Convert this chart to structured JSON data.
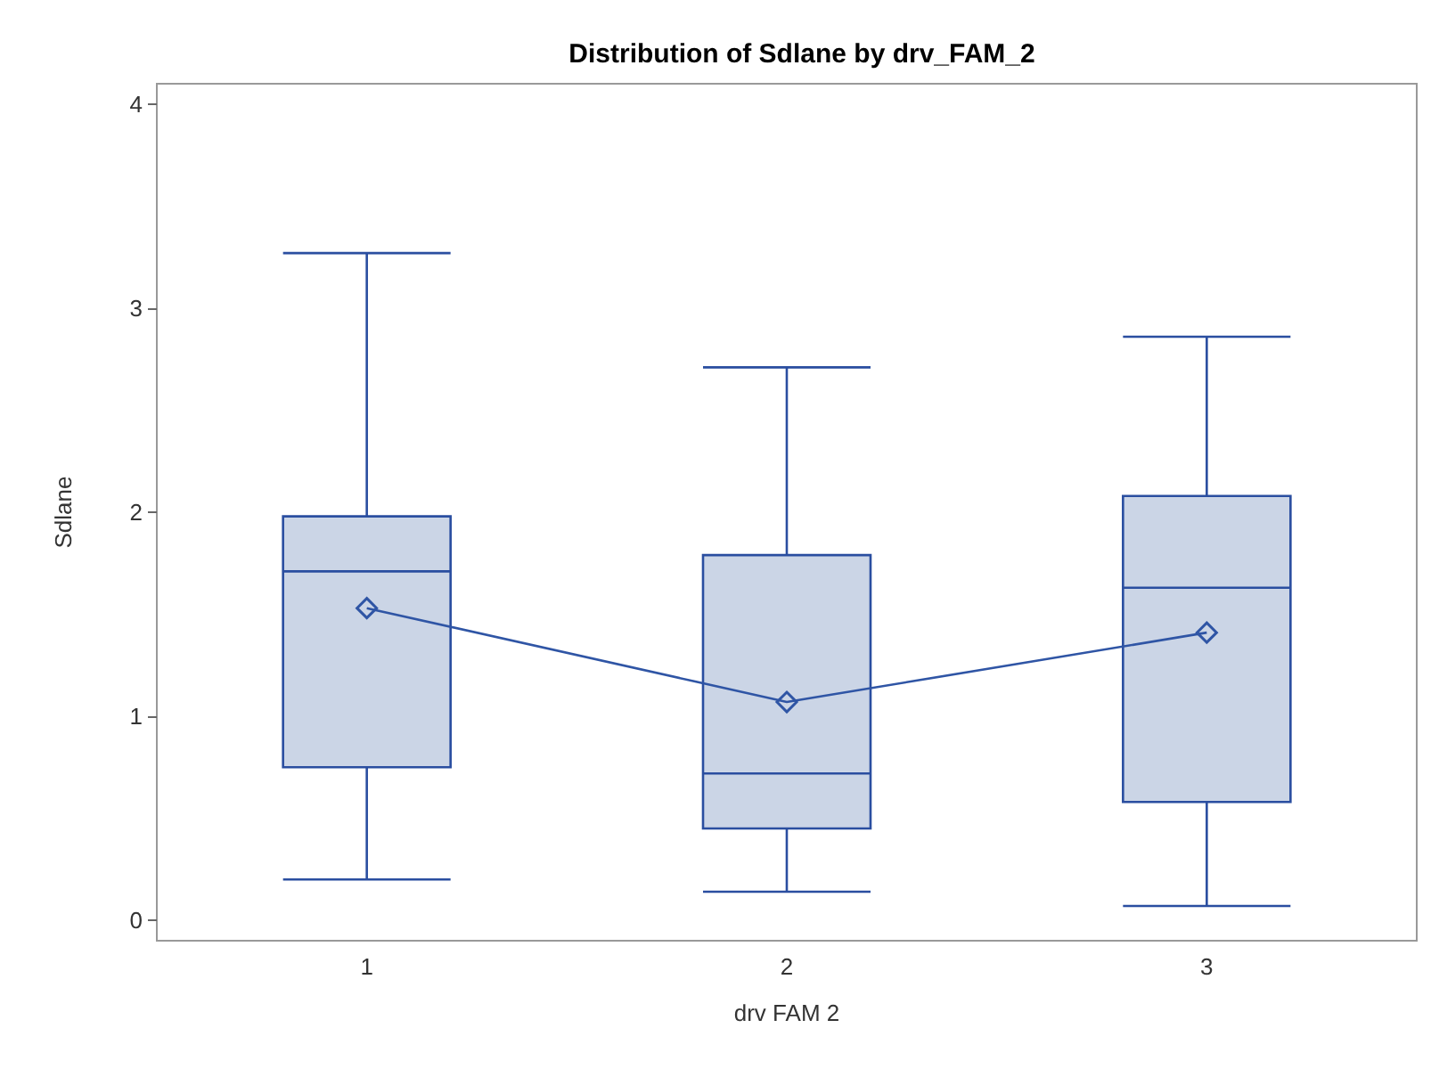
{
  "chart_data": {
    "type": "box",
    "title": "Distribution of Sdlane by drv_FAM_2",
    "xlabel": "drv FAM 2",
    "ylabel": "Sdlane",
    "categories": [
      "1",
      "2",
      "3"
    ],
    "ylim": [
      -0.1,
      4.1
    ],
    "yticks": [
      0,
      1,
      2,
      3,
      4
    ],
    "grid": false,
    "series": [
      {
        "color": "#cbd5e6",
        "boxes": [
          {
            "low": 0.2,
            "q1": 0.75,
            "median": 1.71,
            "q3": 1.98,
            "high": 3.27
          },
          {
            "low": 0.14,
            "q1": 0.45,
            "median": 0.72,
            "q3": 1.79,
            "high": 2.71
          },
          {
            "low": 0.07,
            "q1": 0.58,
            "median": 1.63,
            "q3": 2.08,
            "high": 2.86
          }
        ]
      },
      {
        "type": "line",
        "color": "#2f55a5",
        "marker": "diamond",
        "values": [
          1.53,
          1.07,
          1.41
        ]
      }
    ]
  }
}
